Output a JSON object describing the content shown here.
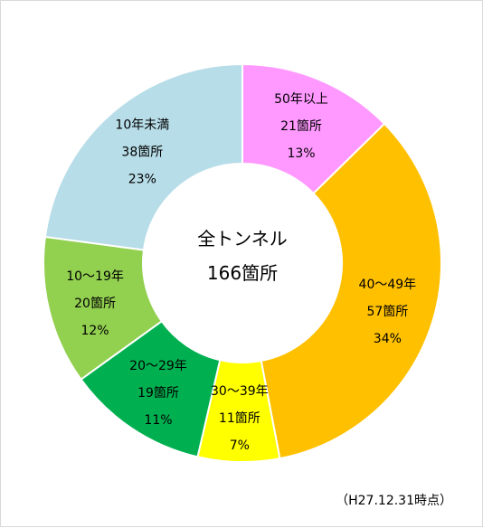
{
  "chart_data": {
    "type": "pie",
    "variant": "donut",
    "center_label": {
      "line1": "全トンネル",
      "line2": "166箇所"
    },
    "slices": [
      {
        "category": "50年以上",
        "count": 21,
        "count_label": "21箇所",
        "percent": 13,
        "percent_label": "13%",
        "color": "#FF99FF"
      },
      {
        "category": "40～49年",
        "count": 57,
        "count_label": "57箇所",
        "percent": 34,
        "percent_label": "34%",
        "color": "#FFC000"
      },
      {
        "category": "30～39年",
        "count": 11,
        "count_label": "11箇所",
        "percent": 7,
        "percent_label": "7%",
        "color": "#FFFF00"
      },
      {
        "category": "20～29年",
        "count": 19,
        "count_label": "19箇所",
        "percent": 11,
        "percent_label": "11%",
        "color": "#00B050"
      },
      {
        "category": "10～19年",
        "count": 20,
        "count_label": "20箇所",
        "percent": 12,
        "percent_label": "12%",
        "color": "#92D050"
      },
      {
        "category": "10年未満",
        "count": 38,
        "count_label": "38箇所",
        "percent": 23,
        "percent_label": "23%",
        "color": "#B7DDE8"
      }
    ],
    "start": "12 o'clock",
    "direction": "clockwise",
    "legend": "none"
  },
  "footnote": "（H27.12.31時点）"
}
